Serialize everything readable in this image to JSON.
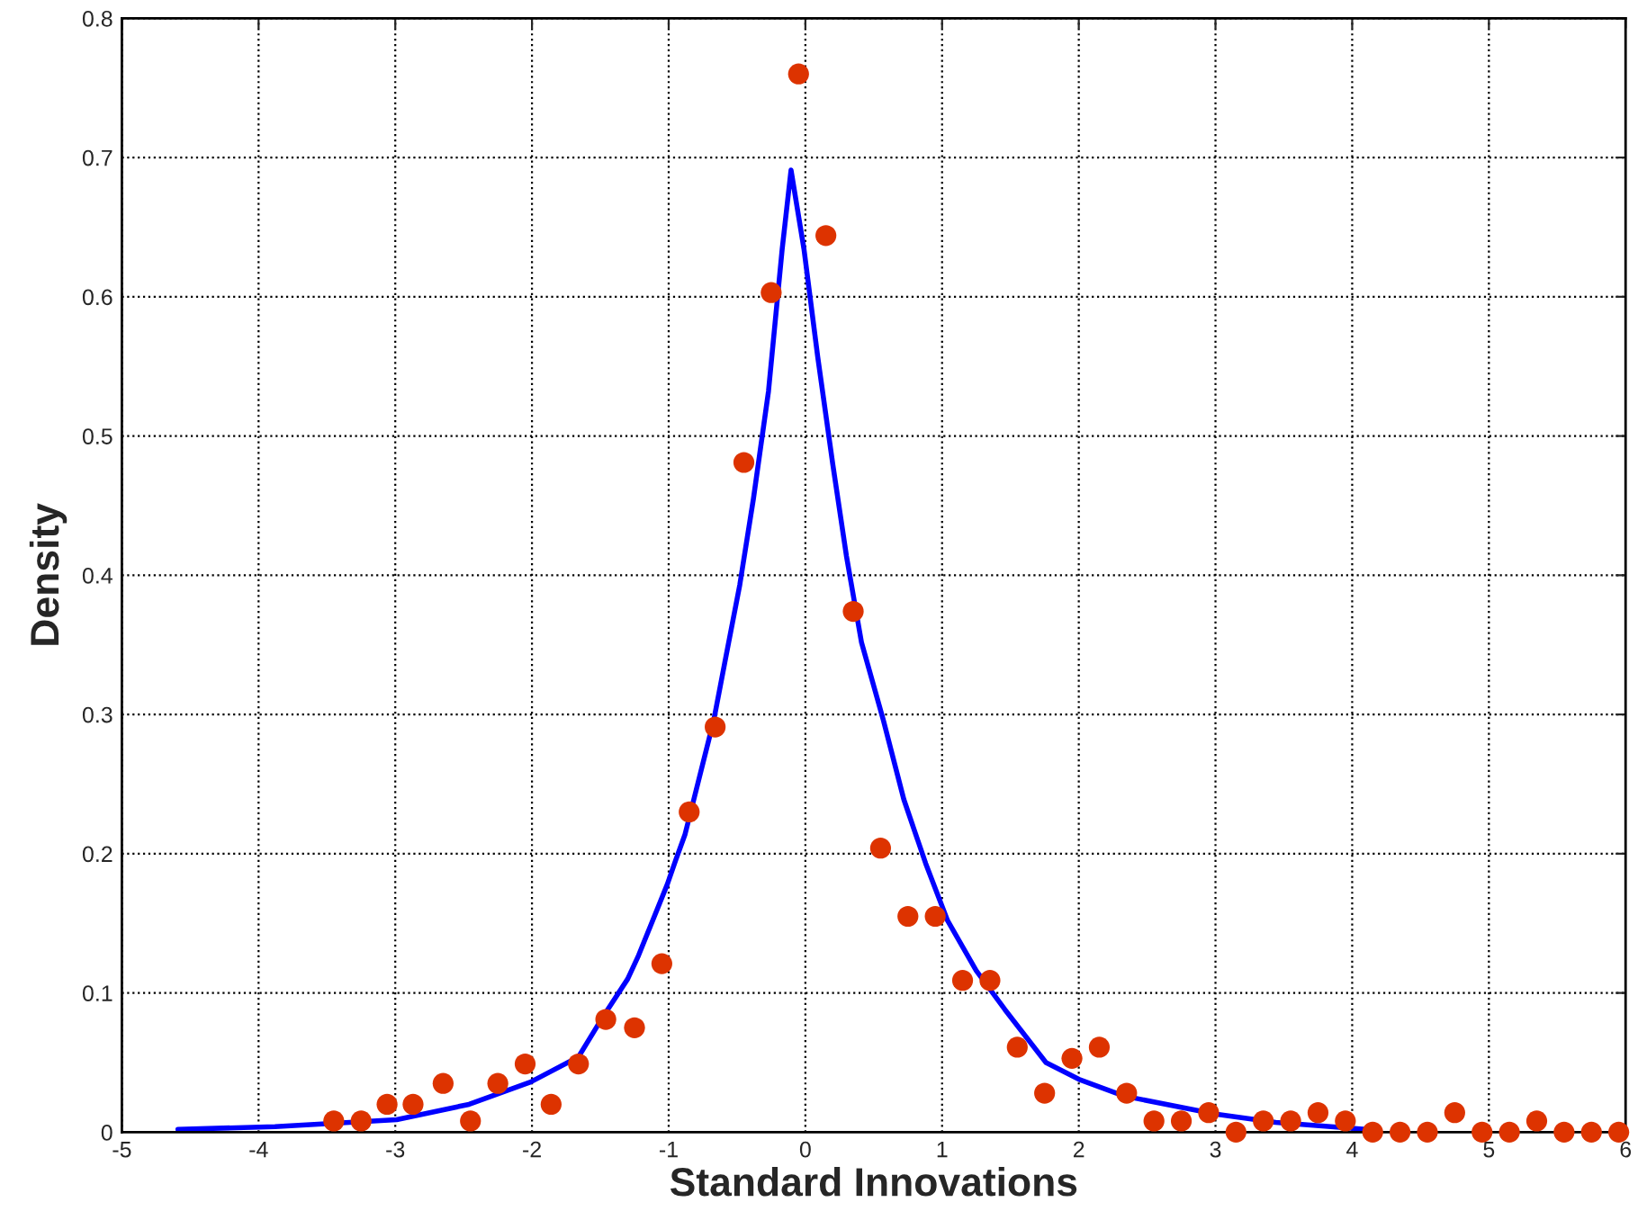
{
  "chart_data": {
    "type": "scatter",
    "xlabel": "Standard Innovations",
    "ylabel": "Density",
    "xlim": [
      -5,
      6
    ],
    "ylim": [
      0,
      0.8
    ],
    "xticks": [
      -5,
      -4,
      -3,
      -2,
      -1,
      0,
      1,
      2,
      3,
      4,
      5,
      6
    ],
    "yticks": [
      0,
      0.1,
      0.2,
      0.3,
      0.4,
      0.5,
      0.6,
      0.7,
      0.8
    ],
    "grid": true,
    "series": [
      {
        "type": "line",
        "color": "#0000ff",
        "marker": "none",
        "line_style": "solid",
        "x": [
          -4.59,
          -3.88,
          -2.99,
          -2.46,
          -2.01,
          -1.66,
          -1.48,
          -1.3,
          -1.22,
          -1.01,
          -0.95,
          -0.88,
          -0.67,
          -0.59,
          -0.48,
          -0.38,
          -0.27,
          -0.17,
          -0.105,
          -0.01,
          0.09,
          0.2,
          0.3,
          0.41,
          0.57,
          0.72,
          0.88,
          1.04,
          1.25,
          1.46,
          1.76,
          2.0,
          2.33,
          3.0,
          3.44,
          4.1
        ],
        "values": [
          0.002,
          0.004,
          0.009,
          0.02,
          0.036,
          0.054,
          0.083,
          0.11,
          0.127,
          0.178,
          0.195,
          0.214,
          0.296,
          0.337,
          0.393,
          0.455,
          0.532,
          0.634,
          0.691,
          0.634,
          0.557,
          0.48,
          0.414,
          0.352,
          0.296,
          0.239,
          0.193,
          0.152,
          0.116,
          0.088,
          0.05,
          0.038,
          0.026,
          0.013,
          0.007,
          0.002
        ]
      },
      {
        "color": "#dd3300",
        "marker": "circle",
        "x": [
          -3.45,
          -3.25,
          -3.06,
          -2.87,
          -2.65,
          -2.45,
          -2.25,
          -2.05,
          -1.86,
          -1.66,
          -1.46,
          -1.25,
          -1.05,
          -0.85,
          -0.66,
          -0.45,
          -0.25,
          -0.05,
          0.15,
          0.35,
          0.55,
          0.75,
          0.95,
          1.15,
          1.35,
          1.55,
          1.75,
          1.95,
          2.15,
          2.35,
          2.55,
          2.75,
          2.95,
          3.15,
          3.35,
          3.55,
          3.75,
          3.95,
          4.15,
          4.35,
          4.55,
          4.75,
          4.95,
          5.15,
          5.35,
          5.55,
          5.75,
          5.95
        ],
        "values": [
          0.008,
          0.008,
          0.02,
          0.02,
          0.035,
          0.008,
          0.035,
          0.049,
          0.02,
          0.049,
          0.081,
          0.075,
          0.121,
          0.23,
          0.291,
          0.481,
          0.603,
          0.76,
          0.644,
          0.374,
          0.204,
          0.155,
          0.155,
          0.109,
          0.109,
          0.061,
          0.028,
          0.053,
          0.061,
          0.028,
          0.008,
          0.008,
          0.014,
          0,
          0.008,
          0.008,
          0.014,
          0.008,
          0,
          0,
          0,
          0.014,
          0,
          0,
          0.008,
          0,
          0,
          0
        ]
      }
    ]
  }
}
